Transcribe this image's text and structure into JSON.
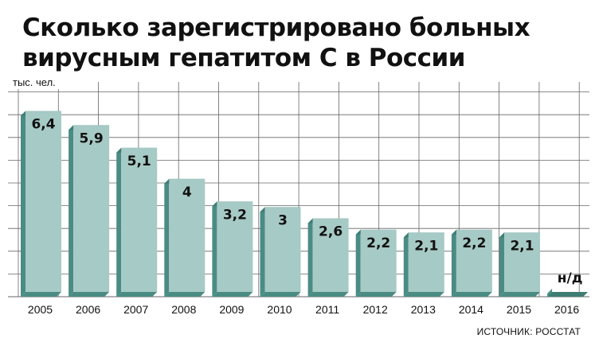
{
  "title_lines": [
    "Сколько зарегистрировано больных",
    "вирусным гепатитом С в России"
  ],
  "unit_label": "тыс. чел.",
  "source": "ИСТОЧНИК: РОССТАТ",
  "colors": {
    "bar_face": "#a6cac5",
    "bar_side": "#4a8c83",
    "bar_top": "#3d7d74",
    "grid": "#666666",
    "text": "#111111"
  },
  "chart_data": {
    "type": "bar",
    "categories": [
      "2005",
      "2006",
      "2007",
      "2008",
      "2009",
      "2010",
      "2011",
      "2012",
      "2013",
      "2014",
      "2015",
      "2016"
    ],
    "values": [
      6.4,
      5.9,
      5.1,
      4,
      3.2,
      3,
      2.6,
      2.2,
      2.1,
      2.2,
      2.1,
      null
    ],
    "value_labels": [
      "6,4",
      "5,9",
      "5,1",
      "4",
      "3,2",
      "3",
      "2,6",
      "2,2",
      "2,1",
      "2,2",
      "2,1",
      "н/д"
    ],
    "ylim": [
      0,
      7.6
    ],
    "grid": true
  }
}
